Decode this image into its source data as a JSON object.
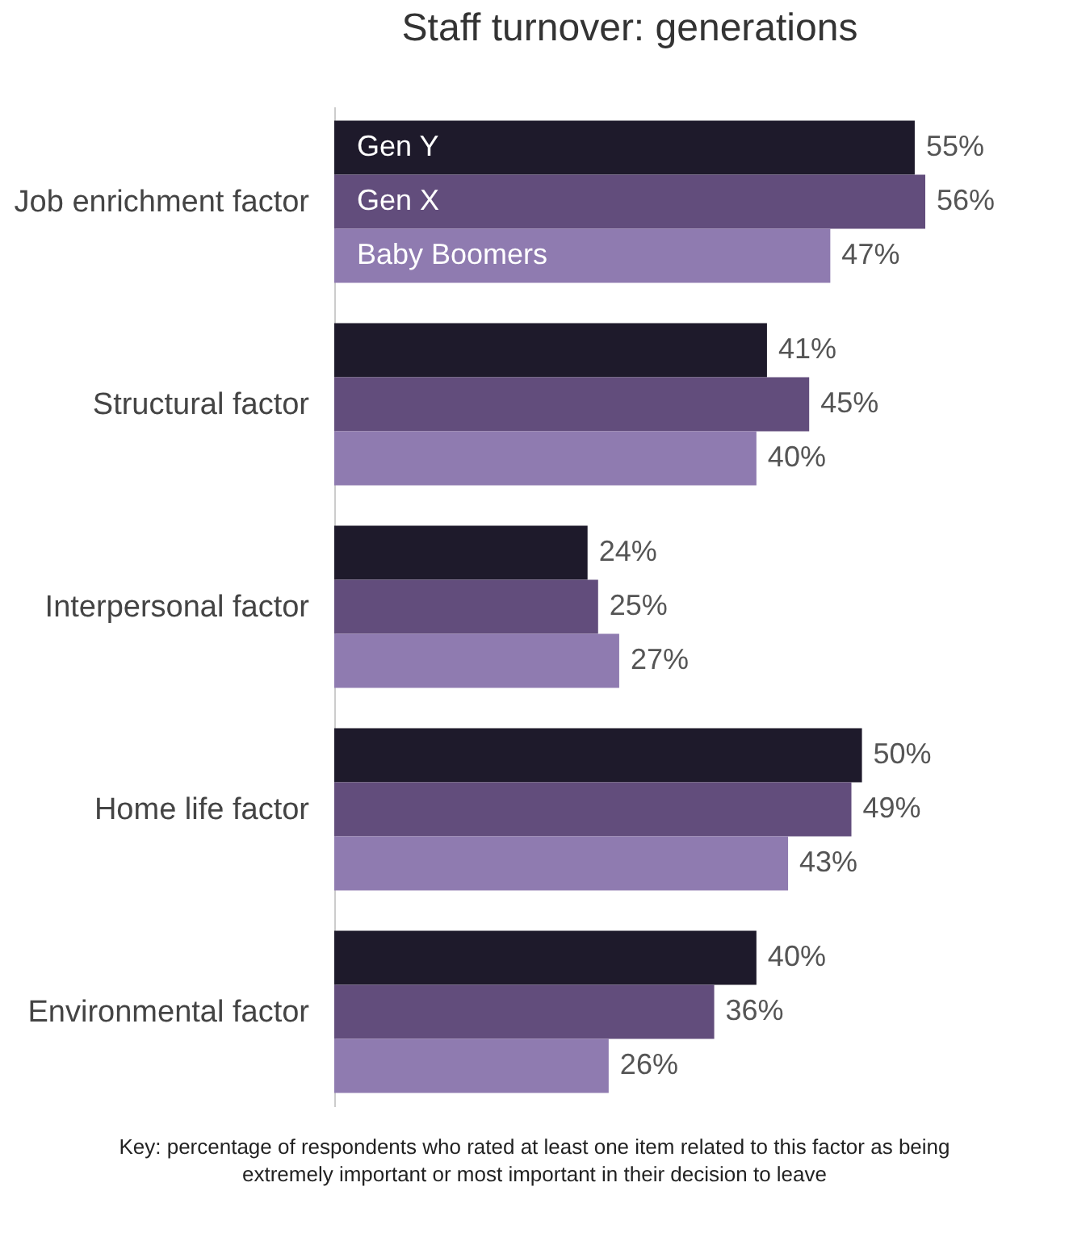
{
  "chart_data": {
    "type": "bar",
    "orientation": "horizontal",
    "title": "Staff turnover: generations",
    "categories": [
      "Job enrichment factor",
      "Structural factor",
      "Interpersonal factor",
      "Home life factor",
      "Environmental factor"
    ],
    "series": [
      {
        "name": "Gen Y",
        "color": "#1e1a2b",
        "values": [
          55,
          41,
          24,
          50,
          40
        ],
        "value_labels": [
          "55%",
          "41%",
          "24%",
          "50%",
          "40%"
        ]
      },
      {
        "name": "Gen X",
        "color": "#624d7c",
        "values": [
          56,
          45,
          25,
          49,
          36
        ],
        "value_labels": [
          "56%",
          "45%",
          "25%",
          "49%",
          "36%"
        ]
      },
      {
        "name": "Baby Boomers",
        "color": "#8f7bb0",
        "values": [
          47,
          40,
          27,
          43,
          26
        ],
        "value_labels": [
          "47%",
          "40%",
          "27%",
          "43%",
          "26%"
        ]
      }
    ],
    "legend": false,
    "annotations": [
      "Key: percentage of respondents who rated at least one item related to this factor as being extremely important or most important in their decision to leave"
    ]
  }
}
